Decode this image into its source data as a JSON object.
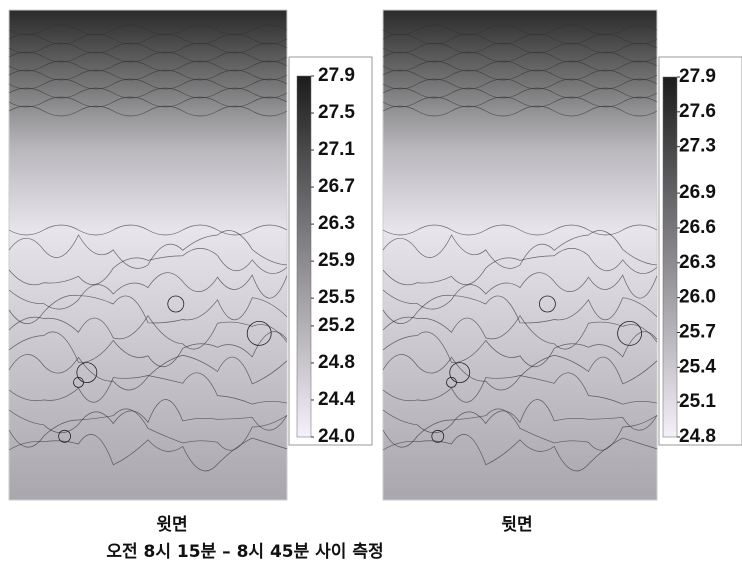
{
  "chart_data": [
    {
      "type": "contour",
      "title": "윗면",
      "clim": [
        24.0,
        27.9
      ],
      "cticks": [
        27.9,
        27.5,
        27.1,
        26.7,
        26.3,
        25.9,
        25.5,
        25.2,
        24.8,
        24.4,
        {
          "value": 24.0,
          "label": "24.0"
        }
      ]
    },
    {
      "type": "contour",
      "title": "뒷면",
      "clim": [
        24.8,
        27.9
      ],
      "cticks": [
        27.9,
        27.6,
        27.3,
        26.9,
        26.6,
        26.3,
        {
          "value": 26.0,
          "label": "26.0"
        },
        25.7,
        25.4,
        25.1,
        24.8
      ]
    }
  ],
  "caption": "오전 8시 15분 – 8시 45분 사이 측정"
}
